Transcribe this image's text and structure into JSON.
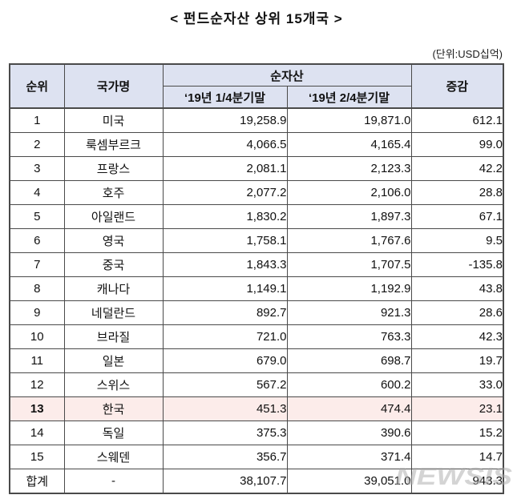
{
  "title": "< 펀드순자산 상위 15개국 >",
  "unit_label": "(단위:USD십억)",
  "watermark": "NEWSIS",
  "colors": {
    "header_bg": "#dde2f1",
    "highlight_bg": "#fcecea",
    "border": "#4a4a4a"
  },
  "table": {
    "headers": {
      "rank": "순위",
      "country": "국가명",
      "net_assets_group": "순자산",
      "q1": "‘19년 1/4분기말",
      "q2": "‘19년 2/4분기말",
      "change": "증감"
    },
    "rows": [
      {
        "rank": "1",
        "country": "미국",
        "q1": "19,258.9",
        "q2": "19,871.0",
        "change": "612.1",
        "highlighted": false
      },
      {
        "rank": "2",
        "country": "룩셈부르크",
        "q1": "4,066.5",
        "q2": "4,165.4",
        "change": "99.0",
        "highlighted": false
      },
      {
        "rank": "3",
        "country": "프랑스",
        "q1": "2,081.1",
        "q2": "2,123.3",
        "change": "42.2",
        "highlighted": false
      },
      {
        "rank": "4",
        "country": "호주",
        "q1": "2,077.2",
        "q2": "2,106.0",
        "change": "28.8",
        "highlighted": false
      },
      {
        "rank": "5",
        "country": "아일랜드",
        "q1": "1,830.2",
        "q2": "1,897.3",
        "change": "67.1",
        "highlighted": false
      },
      {
        "rank": "6",
        "country": "영국",
        "q1": "1,758.1",
        "q2": "1,767.6",
        "change": "9.5",
        "highlighted": false
      },
      {
        "rank": "7",
        "country": "중국",
        "q1": "1,843.3",
        "q2": "1,707.5",
        "change": "-135.8",
        "highlighted": false
      },
      {
        "rank": "8",
        "country": "캐나다",
        "q1": "1,149.1",
        "q2": "1,192.9",
        "change": "43.8",
        "highlighted": false
      },
      {
        "rank": "9",
        "country": "네덜란드",
        "q1": "892.7",
        "q2": "921.3",
        "change": "28.6",
        "highlighted": false
      },
      {
        "rank": "10",
        "country": "브라질",
        "q1": "721.0",
        "q2": "763.3",
        "change": "42.3",
        "highlighted": false
      },
      {
        "rank": "11",
        "country": "일본",
        "q1": "679.0",
        "q2": "698.7",
        "change": "19.7",
        "highlighted": false
      },
      {
        "rank": "12",
        "country": "스위스",
        "q1": "567.2",
        "q2": "600.2",
        "change": "33.0",
        "highlighted": false
      },
      {
        "rank": "13",
        "country": "한국",
        "q1": "451.3",
        "q2": "474.4",
        "change": "23.1",
        "highlighted": true
      },
      {
        "rank": "14",
        "country": "독일",
        "q1": "375.3",
        "q2": "390.6",
        "change": "15.2",
        "highlighted": false
      },
      {
        "rank": "15",
        "country": "스웨덴",
        "q1": "356.7",
        "q2": "371.4",
        "change": "14.7",
        "highlighted": false
      }
    ],
    "total": {
      "rank": "합계",
      "country": "-",
      "q1": "38,107.7",
      "q2": "39,051.0",
      "change": "943.3"
    }
  }
}
